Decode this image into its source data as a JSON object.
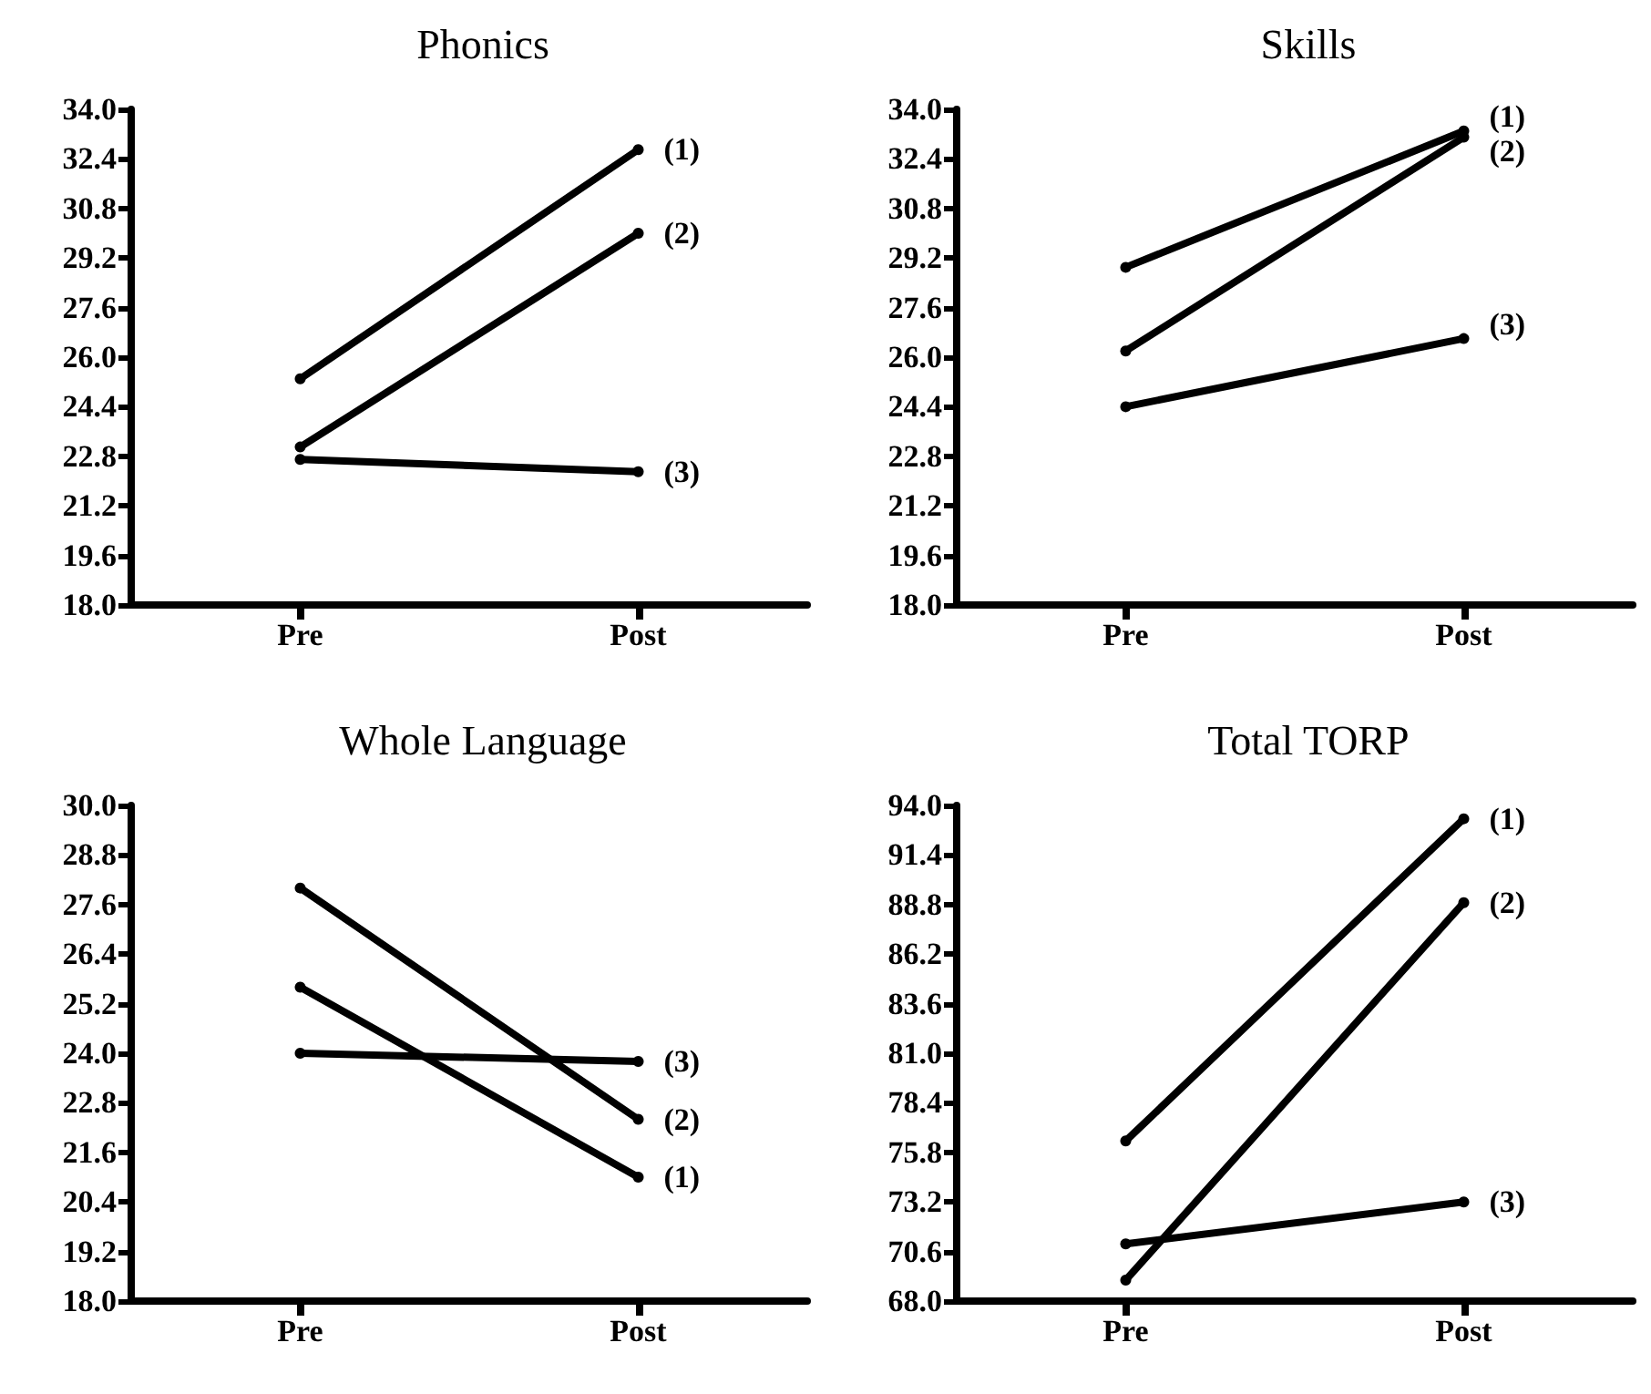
{
  "chart_data": [
    {
      "type": "line",
      "title": "Phonics",
      "categories": [
        "Pre",
        "Post"
      ],
      "ylim": [
        18,
        34
      ],
      "yticks": [
        {
          "value": 18,
          "label": "18.0"
        },
        {
          "value": 19.6,
          "label": "19.6"
        },
        {
          "value": 21.2,
          "label": "21.2"
        },
        {
          "value": 22.8,
          "label": "22.8"
        },
        {
          "value": 24.4,
          "label": "24.4"
        },
        {
          "value": 26,
          "label": "26.0"
        },
        {
          "value": 27.6,
          "label": "27.6"
        },
        {
          "value": 29.2,
          "label": "29.2"
        },
        {
          "value": 30.8,
          "label": "30.8"
        },
        {
          "value": 32.4,
          "label": "32.4"
        },
        {
          "value": 34,
          "label": "34.0"
        }
      ],
      "grid": false,
      "legend": false,
      "marker": "circle",
      "line_style": "solid",
      "series": [
        {
          "name": "(1)",
          "color": "#000000",
          "values": [
            25.3,
            32.7
          ]
        },
        {
          "name": "(2)",
          "color": "#000000",
          "values": [
            23.1,
            30.0
          ]
        },
        {
          "name": "(3)",
          "color": "#000000",
          "values": [
            22.7,
            22.3
          ]
        }
      ]
    },
    {
      "type": "line",
      "title": "Skills",
      "categories": [
        "Pre",
        "Post"
      ],
      "ylim": [
        18,
        34
      ],
      "yticks": [
        {
          "value": 18,
          "label": "18.0"
        },
        {
          "value": 19.6,
          "label": "19.6"
        },
        {
          "value": 21.2,
          "label": "21.2"
        },
        {
          "value": 22.8,
          "label": "22.8"
        },
        {
          "value": 24.4,
          "label": "24.4"
        },
        {
          "value": 26,
          "label": "26.0"
        },
        {
          "value": 27.6,
          "label": "27.6"
        },
        {
          "value": 29.2,
          "label": "29.2"
        },
        {
          "value": 30.8,
          "label": "30.8"
        },
        {
          "value": 32.4,
          "label": "32.4"
        },
        {
          "value": 34,
          "label": "34.0"
        }
      ],
      "grid": false,
      "legend": false,
      "marker": "circle",
      "line_style": "solid",
      "series": [
        {
          "name": "(1)",
          "color": "#000000",
          "values": [
            28.9,
            33.3
          ]
        },
        {
          "name": "(2)",
          "color": "#000000",
          "values": [
            26.2,
            33.1
          ]
        },
        {
          "name": "(3)",
          "color": "#000000",
          "values": [
            24.4,
            26.6
          ]
        }
      ]
    },
    {
      "type": "line",
      "title": "Whole Language",
      "categories": [
        "Pre",
        "Post"
      ],
      "ylim": [
        18,
        30
      ],
      "yticks": [
        {
          "value": 18,
          "label": "18.0"
        },
        {
          "value": 19.2,
          "label": "19.2"
        },
        {
          "value": 20.4,
          "label": "20.4"
        },
        {
          "value": 21.6,
          "label": "21.6"
        },
        {
          "value": 22.8,
          "label": "22.8"
        },
        {
          "value": 24,
          "label": "24.0"
        },
        {
          "value": 25.2,
          "label": "25.2"
        },
        {
          "value": 26.4,
          "label": "26.4"
        },
        {
          "value": 27.6,
          "label": "27.6"
        },
        {
          "value": 28.8,
          "label": "28.8"
        },
        {
          "value": 30,
          "label": "30.0"
        }
      ],
      "grid": false,
      "legend": false,
      "marker": "circle",
      "line_style": "solid",
      "series": [
        {
          "name": "(1)",
          "color": "#000000",
          "values": [
            25.6,
            21.0
          ]
        },
        {
          "name": "(2)",
          "color": "#000000",
          "values": [
            28.0,
            22.4
          ]
        },
        {
          "name": "(3)",
          "color": "#000000",
          "values": [
            24.0,
            23.8
          ]
        }
      ]
    },
    {
      "type": "line",
      "title": "Total TORP",
      "categories": [
        "Pre",
        "Post"
      ],
      "ylim": [
        68,
        94
      ],
      "yticks": [
        {
          "value": 68,
          "label": "68.0"
        },
        {
          "value": 70.6,
          "label": "70.6"
        },
        {
          "value": 73.2,
          "label": "73.2"
        },
        {
          "value": 75.8,
          "label": "75.8"
        },
        {
          "value": 78.4,
          "label": "78.4"
        },
        {
          "value": 81,
          "label": "81.0"
        },
        {
          "value": 83.6,
          "label": "83.6"
        },
        {
          "value": 86.2,
          "label": "86.2"
        },
        {
          "value": 88.8,
          "label": "88.8"
        },
        {
          "value": 91.4,
          "label": "91.4"
        },
        {
          "value": 94,
          "label": "94.0"
        }
      ],
      "grid": false,
      "legend": false,
      "marker": "circle",
      "line_style": "solid",
      "series": [
        {
          "name": "(1)",
          "color": "#000000",
          "values": [
            76.4,
            93.3
          ]
        },
        {
          "name": "(2)",
          "color": "#000000",
          "values": [
            69.1,
            88.9
          ]
        },
        {
          "name": "(3)",
          "color": "#000000",
          "values": [
            71.0,
            73.2
          ]
        }
      ]
    }
  ]
}
